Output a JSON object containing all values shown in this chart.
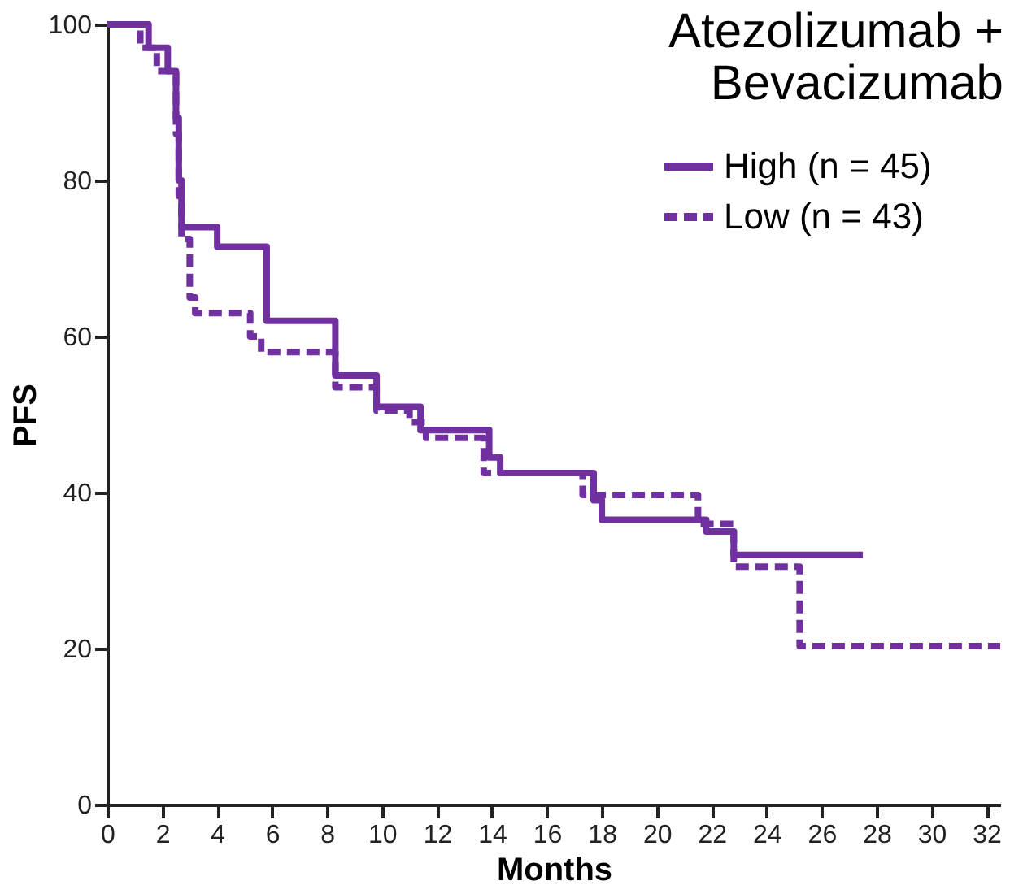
{
  "chart_data": {
    "type": "step",
    "title": [
      "Atezolizumab +",
      "Bevacizumab"
    ],
    "xlabel": "Months",
    "ylabel": "PFS",
    "xlim": [
      0,
      32.5
    ],
    "xticks": [
      0,
      2,
      4,
      6,
      8,
      10,
      12,
      14,
      16,
      18,
      20,
      22,
      24,
      26,
      28,
      30,
      32
    ],
    "ylim": [
      0,
      100
    ],
    "yticks": [
      0,
      20,
      40,
      60,
      80,
      100
    ],
    "grid": false,
    "legend": "top right",
    "series": [
      {
        "name": "High (n = 45)",
        "color": "#7030a0",
        "line_style": "solid",
        "x": [
          0,
          1.5,
          2.2,
          2.5,
          2.6,
          2.7,
          4.0,
          5.8,
          8.3,
          9.8,
          11.4,
          13.9,
          14.3,
          17.7,
          18.0,
          21.8,
          22.8,
          27.5
        ],
        "values": [
          100,
          97,
          94,
          88,
          80,
          74,
          71.5,
          62,
          55,
          51,
          48,
          44.5,
          42.5,
          39,
          36.5,
          35,
          32,
          32
        ]
      },
      {
        "name": "Low (n = 43)",
        "color": "#7030a0",
        "line_style": "dashed",
        "x": [
          0,
          1.2,
          1.8,
          2.5,
          2.6,
          2.7,
          3.0,
          3.2,
          5.2,
          5.6,
          8.3,
          9.8,
          11.0,
          11.6,
          13.7,
          17.3,
          21.5,
          22.8,
          25.2,
          32.5
        ],
        "values": [
          100,
          97,
          94,
          86,
          78,
          72.5,
          65,
          63,
          60,
          58,
          53.5,
          50.5,
          49,
          47,
          42.5,
          39.7,
          36,
          30.5,
          20.3,
          20.3
        ]
      }
    ]
  }
}
